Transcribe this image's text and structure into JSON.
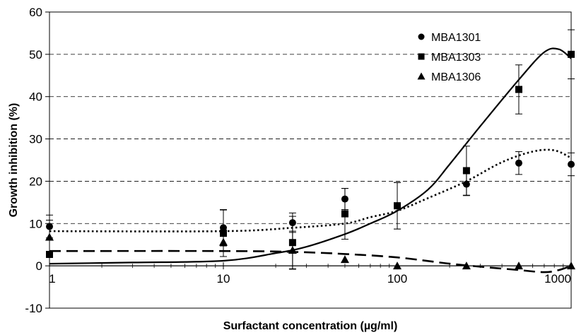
{
  "chart_data": {
    "type": "scatter",
    "xlabel": "Surfactant concentration (µg/ml)",
    "ylabel": "Growth inhibition (%)",
    "xscale": "log",
    "xlim": [
      1,
      1000
    ],
    "ylim": [
      -10,
      60
    ],
    "x_ticks": [
      1,
      10,
      100,
      1000
    ],
    "y_ticks": [
      -10,
      0,
      10,
      20,
      30,
      40,
      50,
      60
    ],
    "grid": "horizontal dashed",
    "legend_position": "top-right",
    "series": [
      {
        "name": "MBA1301",
        "marker": "circle",
        "line_style": "dotted",
        "x": [
          1,
          10,
          25,
          50,
          100,
          250,
          500,
          1000
        ],
        "y": [
          9.3,
          9.0,
          10.2,
          15.8,
          14.2,
          19.3,
          24.3,
          24.0
        ],
        "error": [
          2.7,
          4.3,
          2.3,
          2.5,
          5.5,
          2.7,
          2.7,
          2.7
        ],
        "curve": {
          "x": [
            1,
            10,
            25,
            50,
            70,
            100,
            150,
            250,
            400,
            600,
            800,
            1000
          ],
          "y": [
            8.2,
            8.2,
            9.0,
            10.0,
            11.5,
            13.0,
            16.0,
            20.0,
            24.5,
            27.0,
            27.3,
            25.5
          ]
        }
      },
      {
        "name": "MBA1303",
        "marker": "square",
        "line_style": "solid",
        "x": [
          1,
          10,
          25,
          50,
          100,
          250,
          500,
          1000
        ],
        "y": [
          2.7,
          7.7,
          5.5,
          12.3,
          14.2,
          22.5,
          41.7,
          50.0
        ],
        "error": [
          0,
          5.5,
          6.2,
          6.0,
          5.5,
          5.8,
          5.8,
          5.8
        ],
        "curve": {
          "x": [
            1,
            3,
            10,
            20,
            30,
            50,
            70,
            100,
            150,
            200,
            300,
            500,
            700,
            850,
            1000
          ],
          "y": [
            0.5,
            0.8,
            1.2,
            3.0,
            4.5,
            7.5,
            10.0,
            13.0,
            18.0,
            24.0,
            33.0,
            44.0,
            50.5,
            51.2,
            49.0
          ]
        }
      },
      {
        "name": "MBA1306",
        "marker": "triangle",
        "line_style": "long-dashed",
        "x": [
          1,
          10,
          25,
          50,
          100,
          250,
          500,
          1000
        ],
        "y": [
          6.8,
          5.6,
          3.7,
          1.5,
          0.0,
          0.0,
          0.0,
          0.0
        ],
        "error": [
          4.0,
          0,
          4.5,
          0,
          0,
          0,
          0,
          0
        ],
        "curve": {
          "x": [
            1,
            10,
            25,
            50,
            100,
            200,
            300,
            500,
            700,
            850,
            1000
          ],
          "y": [
            3.5,
            3.5,
            3.3,
            2.8,
            2.0,
            0.5,
            -0.2,
            -1.0,
            -1.5,
            -1.0,
            0.0
          ]
        }
      }
    ]
  }
}
